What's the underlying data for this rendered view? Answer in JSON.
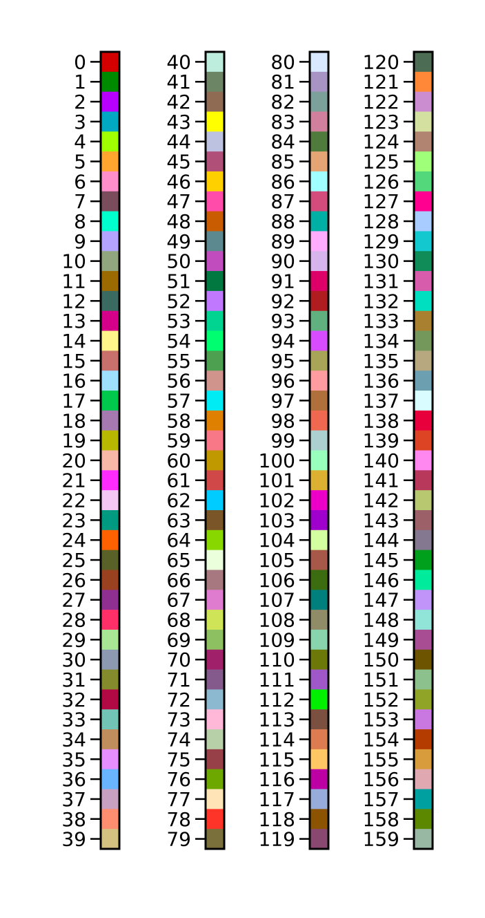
{
  "chart_data": {
    "type": "heatmap",
    "description_title": "",
    "columns": [
      {
        "labels": [
          "0",
          "1",
          "2",
          "3",
          "4",
          "5",
          "6",
          "7",
          "8",
          "9",
          "10",
          "11",
          "12",
          "13",
          "14",
          "15",
          "16",
          "17",
          "18",
          "19",
          "20",
          "21",
          "22",
          "23",
          "24",
          "25",
          "26",
          "27",
          "28",
          "29",
          "30",
          "31",
          "32",
          "33",
          "34",
          "35",
          "36",
          "37",
          "38",
          "39"
        ],
        "colors": [
          "#d40000",
          "#008a00",
          "#b800ff",
          "#00a8c2",
          "#a0ff00",
          "#ffa530",
          "#ff8ecc",
          "#7b4c5c",
          "#00ffcc",
          "#b4a4ff",
          "#91a67f",
          "#9b6a00",
          "#3b6a60",
          "#d4008a",
          "#fff58a",
          "#c8716c",
          "#a0e0ff",
          "#00c84c",
          "#a679b0",
          "#b8b800",
          "#f8b8a8",
          "#ff2cff",
          "#f4c8f4",
          "#009a80",
          "#ff6000",
          "#596128",
          "#9a4220",
          "#8f3090",
          "#ff3068",
          "#a8e696",
          "#8c99b0",
          "#848b2c",
          "#b20844",
          "#72c4b4",
          "#c08e5c",
          "#e48eff",
          "#68b4ff",
          "#c8a0c0",
          "#ff8e70",
          "#d4c080"
        ]
      },
      {
        "labels": [
          "40",
          "41",
          "42",
          "43",
          "44",
          "45",
          "46",
          "47",
          "48",
          "49",
          "50",
          "51",
          "52",
          "53",
          "54",
          "55",
          "56",
          "57",
          "58",
          "59",
          "60",
          "61",
          "62",
          "63",
          "64",
          "65",
          "66",
          "67",
          "68",
          "69",
          "70",
          "71",
          "72",
          "73",
          "74",
          "75",
          "76",
          "77",
          "78",
          "79"
        ],
        "colors": [
          "#bdeedd",
          "#6b8565",
          "#8f6b53",
          "#ffff00",
          "#bcc2e0",
          "#b05078",
          "#ffd000",
          "#ff4caa",
          "#c95c00",
          "#5c8890",
          "#c04cbe",
          "#007840",
          "#c078ff",
          "#00d490",
          "#00ff70",
          "#4ca050",
          "#d0948c",
          "#00ecf4",
          "#e08000",
          "#f87888",
          "#c09800",
          "#d04848",
          "#00ccff",
          "#795528",
          "#88d800",
          "#ecffdc",
          "#a87880",
          "#e07cd0",
          "#d0e458",
          "#8cc060",
          "#a0206a",
          "#845a8c",
          "#8cb8d0",
          "#ffb8d8",
          "#b8d0a8",
          "#984048",
          "#6ca800",
          "#ffe4b8",
          "#ff3428",
          "#7a703c"
        ]
      },
      {
        "labels": [
          "80",
          "81",
          "82",
          "83",
          "84",
          "85",
          "86",
          "87",
          "88",
          "89",
          "90",
          "91",
          "92",
          "93",
          "94",
          "95",
          "96",
          "97",
          "98",
          "99",
          "100",
          "101",
          "102",
          "103",
          "104",
          "105",
          "106",
          "107",
          "108",
          "109",
          "110",
          "111",
          "112",
          "113",
          "114",
          "115",
          "116",
          "117",
          "118",
          "119"
        ],
        "colors": [
          "#d8e8ff",
          "#a794c4",
          "#7ca09a",
          "#d0809c",
          "#4f7c3c",
          "#e4a474",
          "#a0ffff",
          "#d44c7c",
          "#00b0a4",
          "#ffacff",
          "#d8b4ec",
          "#dc0068",
          "#b01c20",
          "#60b080",
          "#d84cff",
          "#a8a458",
          "#ff9ca0",
          "#b0703c",
          "#f06850",
          "#acd0d0",
          "#98ffbc",
          "#dcb030",
          "#ec00c8",
          "#a000cc",
          "#d4ffa0",
          "#a85848",
          "#3c6c10",
          "#00807c",
          "#908c68",
          "#88d4ac",
          "#6c7808",
          "#a058c8",
          "#00f000",
          "#7c5040",
          "#dc7c50",
          "#ffc864",
          "#bc00a4",
          "#98acdc",
          "#8c5400",
          "#884870"
        ]
      },
      {
        "labels": [
          "120",
          "121",
          "122",
          "123",
          "124",
          "125",
          "126",
          "127",
          "128",
          "129",
          "130",
          "131",
          "132",
          "133",
          "134",
          "135",
          "136",
          "137",
          "138",
          "139",
          "140",
          "141",
          "142",
          "143",
          "144",
          "145",
          "146",
          "147",
          "148",
          "149",
          "150",
          "151",
          "152",
          "153",
          "154",
          "155",
          "156",
          "157",
          "158",
          "159"
        ],
        "colors": [
          "#4c6c54",
          "#ff8838",
          "#cc8cd0",
          "#d4e0a0",
          "#b08470",
          "#a0ff78",
          "#54d87c",
          "#ff0090",
          "#a8ccff",
          "#14c8d0",
          "#108c58",
          "#d85cac",
          "#00e0c0",
          "#a88030",
          "#74985c",
          "#b8a880",
          "#6ca0b0",
          "#d8fcff",
          "#e8003c",
          "#dc4424",
          "#ff88f0",
          "#b8385c",
          "#b8c870",
          "#9c6068",
          "#847890",
          "#00a01c",
          "#00ec9c",
          "#c094f8",
          "#90e4d8",
          "#a84c94",
          "#6c5400",
          "#8cc08c",
          "#90a428",
          "#c878e0",
          "#b43c00",
          "#d89c3c",
          "#e0a8b0",
          "#00a0a0",
          "#5c8800",
          "#98b8a4"
        ]
      }
    ]
  }
}
